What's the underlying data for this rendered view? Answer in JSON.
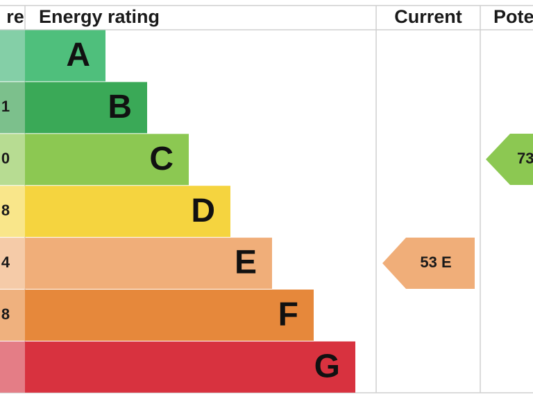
{
  "header": {
    "score": "re",
    "rating": "Energy rating",
    "current": "Current",
    "potential": "Pote"
  },
  "bands": [
    {
      "letter": "A",
      "color": "#4fbf7c",
      "score_color": "#84cfa7"
    },
    {
      "letter": "B",
      "score": "1",
      "color": "#3aa957",
      "score_color": "#7cc08c"
    },
    {
      "letter": "C",
      "score": "0",
      "color": "#8cc852",
      "score_color": "#b7dc92"
    },
    {
      "letter": "D",
      "score": "8",
      "color": "#f5d43f",
      "score_color": "#f9e68a"
    },
    {
      "letter": "E",
      "score": "4",
      "color": "#f0ae79",
      "score_color": "#f5cba8"
    },
    {
      "letter": "F",
      "score": "8",
      "color": "#e6883b",
      "score_color": "#efb17e"
    },
    {
      "letter": "G",
      "color": "#d8323f",
      "score_color": "#e47d86"
    }
  ],
  "current": {
    "label": "53 E",
    "color": "#f0ae79"
  },
  "potential": {
    "label": "73",
    "color": "#8cc852"
  }
}
